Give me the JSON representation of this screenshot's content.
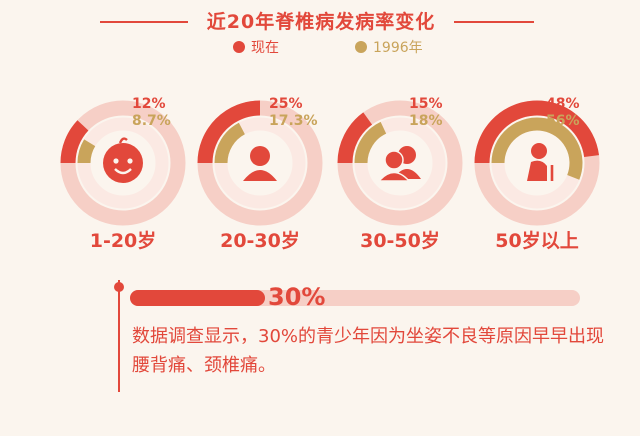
{
  "chart_data": {
    "type": "donut",
    "title": "近20年脊椎病发病率变化",
    "legend": [
      {
        "label": "现在",
        "color": "#e2483b"
      },
      {
        "label": "1996年",
        "color": "#c9a45b"
      }
    ],
    "categories": [
      "1-20岁",
      "20-30岁",
      "30-50岁",
      "50岁以上"
    ],
    "series": [
      {
        "name": "现在",
        "values": [
          12,
          25,
          15,
          48
        ],
        "labels": [
          "12%",
          "25%",
          "15%",
          "48%"
        ],
        "color": "#e2483b"
      },
      {
        "name": "1996年",
        "values": [
          8.7,
          17.3,
          18,
          56
        ],
        "labels": [
          "8.7%",
          "17.3%",
          "18%",
          "56%"
        ],
        "color": "#c9a45b"
      }
    ],
    "icons": [
      "baby-face-icon",
      "person-icon",
      "people-icon",
      "elderly-icon"
    ],
    "ylim": [
      0,
      100
    ]
  },
  "highlight": {
    "value": 30,
    "label": "30%",
    "note": "数据调查显示，30%的青少年因为坐姿不良等原因早早出现腰背痛、颈椎痛。"
  },
  "colors": {
    "accent": "#e2483b",
    "gold": "#c9a45b",
    "track": "#f6cfc6",
    "background": "#fbf5ee"
  }
}
